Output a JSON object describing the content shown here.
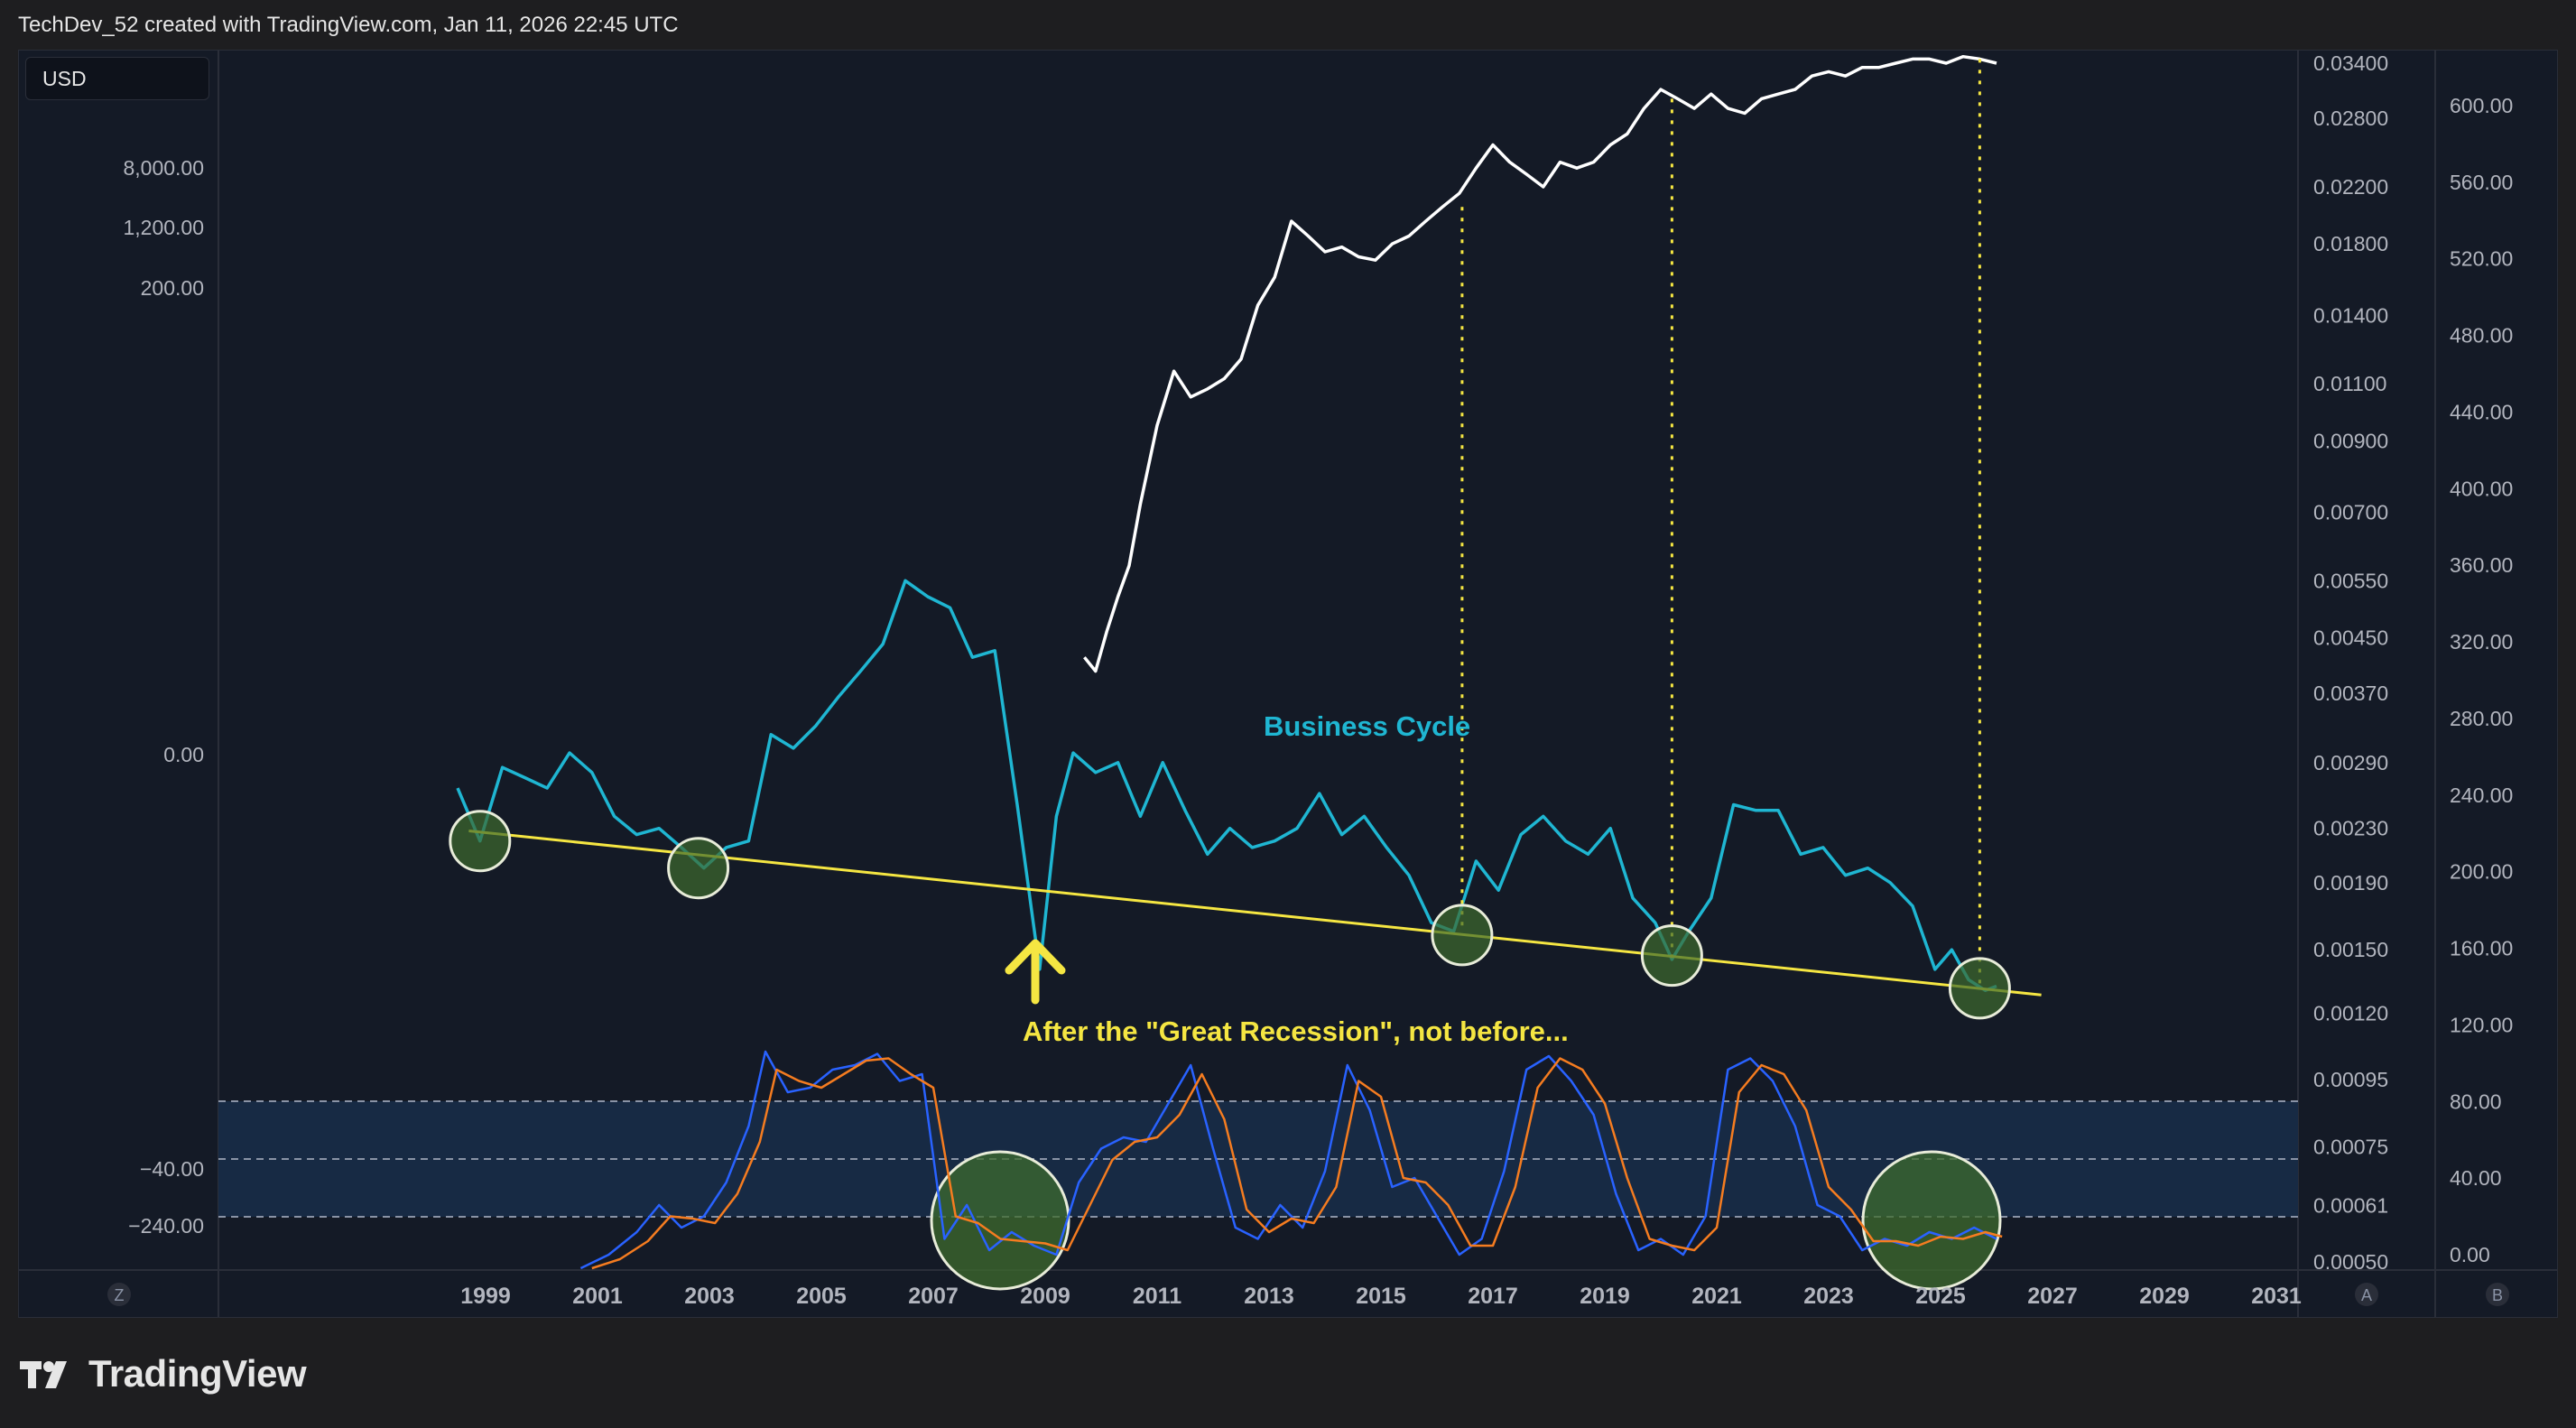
{
  "header": {
    "attribution": "TechDev_52 created with TradingView.com, Jan 11, 2026 22:45 UTC"
  },
  "currency_button": {
    "label": "USD"
  },
  "logo": {
    "text": "TradingView"
  },
  "axis_buttons": {
    "left": "Z",
    "right_a": "A",
    "right_b": "B"
  },
  "colors": {
    "background": "#141a26",
    "price_line": "#ffffff",
    "business_cycle": "#1fb6d2",
    "trendline": "#f5e642",
    "stoch_k": "#2962ff",
    "stoch_d": "#f57c20",
    "highlight_circle": "#3d6b2e"
  },
  "chart_data": {
    "type": "line",
    "title": "",
    "x_axis": {
      "tick_labels": [
        "1999",
        "2001",
        "2003",
        "2005",
        "2007",
        "2009",
        "2011",
        "2013",
        "2015",
        "2017",
        "2019",
        "2021",
        "2023",
        "2025",
        "2027",
        "2029",
        "2031"
      ],
      "range": [
        1998,
        2031
      ]
    },
    "left_axis": {
      "tick_labels": [
        "8,000.00",
        "1,200.00",
        "200.00",
        "0.00",
        "−40.00",
        "−240.00"
      ]
    },
    "right_axis_log": {
      "tick_labels": [
        "0.03400",
        "0.02800",
        "0.02200",
        "0.01800",
        "0.01400",
        "0.01100",
        "0.00900",
        "0.00700",
        "0.00550",
        "0.00450",
        "0.00370",
        "0.00290",
        "0.00230",
        "0.00190",
        "0.00150",
        "0.00120",
        "0.00095",
        "0.00075",
        "0.00061",
        "0.00050"
      ],
      "scale": "log"
    },
    "right_axis_linear": {
      "tick_labels": [
        "600.00",
        "560.00",
        "520.00",
        "480.00",
        "440.00",
        "400.00",
        "360.00",
        "320.00",
        "280.00",
        "240.00",
        "200.00",
        "160.00",
        "120.00",
        "80.00",
        "40.00",
        "0.00"
      ],
      "range": [
        0,
        600
      ]
    },
    "annotations": {
      "business_cycle_label": "Business Cycle",
      "recession_note": "After the \"Great Recession\", not before..."
    },
    "series": [
      {
        "axis": "right_log",
        "color": "#ffffff",
        "x": [
          2009.7,
          2009.9,
          2010.1,
          2010.3,
          2010.5,
          2010.7,
          2011.0,
          2011.3,
          2011.6,
          2011.9,
          2012.2,
          2012.5,
          2012.8,
          2013.1,
          2013.4,
          2013.7,
          2014.0,
          2014.3,
          2014.6,
          2014.9,
          2015.2,
          2015.5,
          2015.8,
          2016.1,
          2016.4,
          2016.7,
          2017.0,
          2017.3,
          2017.6,
          2017.9,
          2018.2,
          2018.5,
          2018.8,
          2019.1,
          2019.4,
          2019.7,
          2020.0,
          2020.3,
          2020.6,
          2020.9,
          2021.2,
          2021.5,
          2021.8,
          2022.1,
          2022.4,
          2022.7,
          2023.0,
          2023.3,
          2023.6,
          2023.9,
          2024.2,
          2024.5,
          2024.8,
          2025.1,
          2025.4,
          2025.7,
          2026.0
        ],
        "y": [
          0.0042,
          0.004,
          0.0046,
          0.0052,
          0.0058,
          0.0072,
          0.0095,
          0.0115,
          0.0105,
          0.0108,
          0.0112,
          0.012,
          0.0145,
          0.016,
          0.0195,
          0.0185,
          0.0175,
          0.0178,
          0.0172,
          0.017,
          0.018,
          0.0185,
          0.0195,
          0.0205,
          0.0215,
          0.0235,
          0.0255,
          0.024,
          0.023,
          0.022,
          0.024,
          0.0235,
          0.024,
          0.0255,
          0.0265,
          0.029,
          0.031,
          0.03,
          0.029,
          0.0305,
          0.029,
          0.0285,
          0.03,
          0.0305,
          0.031,
          0.0325,
          0.033,
          0.0325,
          0.0335,
          0.0335,
          0.034,
          0.0345,
          0.0345,
          0.034,
          0.0348,
          0.0345,
          0.034
        ]
      },
      {
        "axis": "right_log",
        "color": "#1fb6d2",
        "x": [
          1998.5,
          1998.9,
          1999.3,
          1999.7,
          2000.1,
          2000.5,
          2000.9,
          2001.3,
          2001.7,
          2002.1,
          2002.5,
          2002.9,
          2003.3,
          2003.7,
          2004.1,
          2004.5,
          2004.9,
          2005.3,
          2005.7,
          2006.1,
          2006.5,
          2006.9,
          2007.3,
          2007.7,
          2008.1,
          2008.5,
          2008.9,
          2009.2,
          2009.5,
          2009.9,
          2010.3,
          2010.7,
          2011.1,
          2011.5,
          2011.9,
          2012.3,
          2012.7,
          2013.1,
          2013.5,
          2013.9,
          2014.3,
          2014.7,
          2015.1,
          2015.5,
          2015.9,
          2016.3,
          2016.7,
          2017.1,
          2017.5,
          2017.9,
          2018.3,
          2018.7,
          2019.1,
          2019.5,
          2019.9,
          2020.2,
          2020.5,
          2020.9,
          2021.3,
          2021.7,
          2022.1,
          2022.5,
          2022.9,
          2023.3,
          2023.7,
          2024.1,
          2024.5,
          2024.9,
          2025.2,
          2025.5,
          2025.8,
          2026.0
        ],
        "y": [
          0.00265,
          0.0022,
          0.00285,
          0.00275,
          0.00265,
          0.003,
          0.0028,
          0.0024,
          0.00225,
          0.0023,
          0.00215,
          0.002,
          0.00215,
          0.0022,
          0.0032,
          0.00305,
          0.0033,
          0.00365,
          0.004,
          0.0044,
          0.0055,
          0.0052,
          0.005,
          0.0042,
          0.0043,
          0.0025,
          0.0014,
          0.0024,
          0.003,
          0.0028,
          0.0029,
          0.0024,
          0.0029,
          0.00245,
          0.0021,
          0.0023,
          0.00215,
          0.0022,
          0.0023,
          0.0026,
          0.00225,
          0.0024,
          0.00215,
          0.00195,
          0.00165,
          0.0016,
          0.00205,
          0.00185,
          0.00225,
          0.0024,
          0.0022,
          0.0021,
          0.0023,
          0.0018,
          0.00165,
          0.00145,
          0.0016,
          0.0018,
          0.0025,
          0.00245,
          0.00245,
          0.0021,
          0.00215,
          0.00195,
          0.002,
          0.0019,
          0.00175,
          0.0014,
          0.0015,
          0.00135,
          0.0013,
          0.00132
        ]
      },
      {
        "axis": "right_log",
        "color": "#f5e642",
        "x": [
          1998.7,
          2026.8
        ],
        "y": [
          0.00228,
          0.00128
        ]
      },
      {
        "axis": "right_linear",
        "name": "",
        "color": "#2962ff",
        "x": [
          2000.7,
          2001.2,
          2001.7,
          2002.1,
          2002.5,
          2002.9,
          2003.3,
          2003.7,
          2004.0,
          2004.4,
          2004.8,
          2005.2,
          2005.6,
          2006.0,
          2006.4,
          2006.8,
          2007.2,
          2007.6,
          2008.0,
          2008.4,
          2008.8,
          2009.2,
          2009.6,
          2010.0,
          2010.4,
          2010.8,
          2011.2,
          2011.6,
          2012.0,
          2012.4,
          2012.8,
          2013.2,
          2013.6,
          2014.0,
          2014.4,
          2014.8,
          2015.2,
          2015.6,
          2016.0,
          2016.4,
          2016.8,
          2017.2,
          2017.6,
          2018.0,
          2018.4,
          2018.8,
          2019.2,
          2019.6,
          2020.0,
          2020.4,
          2020.8,
          2021.2,
          2021.6,
          2022.0,
          2022.4,
          2022.8,
          2023.2,
          2023.6,
          2024.0,
          2024.4,
          2024.8,
          2025.2,
          2025.6,
          2026.0
        ],
        "y": [
          2,
          8,
          18,
          30,
          20,
          25,
          40,
          65,
          98,
          80,
          82,
          90,
          92,
          97,
          85,
          88,
          15,
          30,
          10,
          18,
          12,
          8,
          40,
          55,
          60,
          58,
          75,
          92,
          55,
          20,
          15,
          30,
          20,
          45,
          92,
          72,
          38,
          42,
          25,
          8,
          15,
          45,
          90,
          96,
          85,
          70,
          35,
          10,
          15,
          8,
          25,
          90,
          95,
          85,
          65,
          30,
          25,
          10,
          15,
          12,
          18,
          15,
          20,
          15
        ]
      },
      {
        "axis": "right_linear",
        "name": "",
        "color": "#f57c20",
        "x": [
          2000.9,
          2001.4,
          2001.9,
          2002.3,
          2002.7,
          2003.1,
          2003.5,
          2003.9,
          2004.2,
          2004.6,
          2005.0,
          2005.4,
          2005.8,
          2006.2,
          2006.6,
          2007.0,
          2007.4,
          2007.8,
          2008.2,
          2008.6,
          2009.0,
          2009.4,
          2009.8,
          2010.2,
          2010.6,
          2011.0,
          2011.4,
          2011.8,
          2012.2,
          2012.6,
          2013.0,
          2013.4,
          2013.8,
          2014.2,
          2014.6,
          2015.0,
          2015.4,
          2015.8,
          2016.2,
          2016.6,
          2017.0,
          2017.4,
          2017.8,
          2018.2,
          2018.6,
          2019.0,
          2019.4,
          2019.8,
          2020.2,
          2020.6,
          2021.0,
          2021.4,
          2021.8,
          2022.2,
          2022.6,
          2023.0,
          2023.4,
          2023.8,
          2024.2,
          2024.6,
          2025.0,
          2025.4,
          2025.8,
          2026.1
        ],
        "y": [
          2,
          6,
          14,
          25,
          24,
          22,
          35,
          58,
          90,
          85,
          82,
          88,
          94,
          95,
          88,
          82,
          25,
          22,
          15,
          14,
          13,
          10,
          30,
          50,
          58,
          60,
          70,
          88,
          68,
          28,
          18,
          24,
          22,
          38,
          85,
          78,
          42,
          40,
          30,
          12,
          12,
          38,
          82,
          95,
          90,
          75,
          42,
          15,
          12,
          10,
          20,
          80,
          92,
          88,
          72,
          38,
          28,
          14,
          14,
          12,
          16,
          15,
          18,
          16
        ]
      }
    ],
    "trough_markers": [
      "1999",
      "2003",
      "2016",
      "2020",
      "2025"
    ],
    "stoch_band": {
      "upper": 80,
      "middle": 50,
      "lower": 20
    }
  }
}
